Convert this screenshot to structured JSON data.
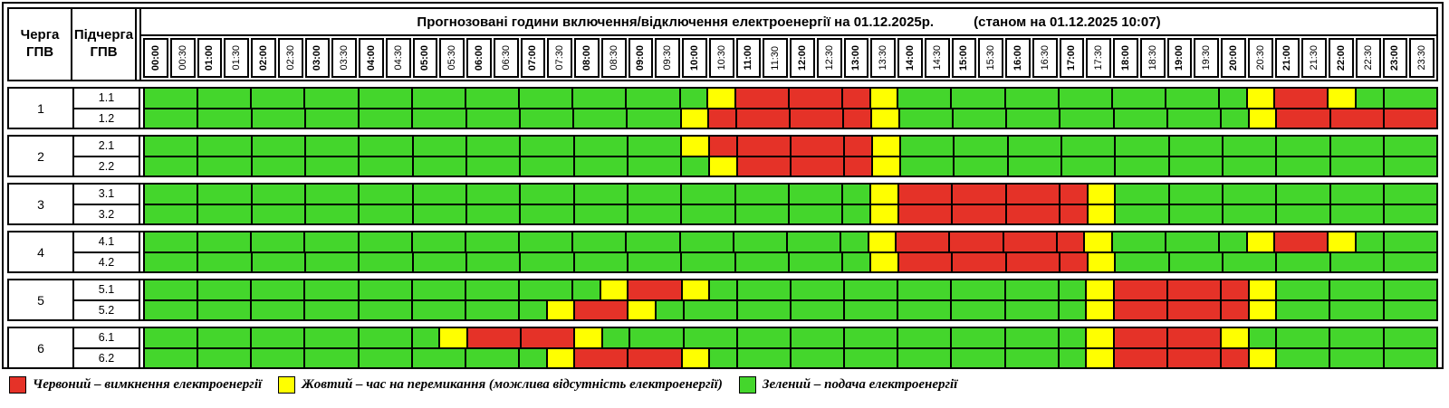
{
  "chart_data": {
    "type": "heatmap",
    "title": "Прогнозовані години включення/відключення електроенергії на 01.12.2025р.",
    "note": "(станом на 01.12.2025 10:07)",
    "col_queue_header": "Черга ГПВ",
    "col_subqueue_header": "Підчерга ГПВ",
    "x_labels": [
      "00:00",
      "00:30",
      "01:00",
      "01:30",
      "02:00",
      "02:30",
      "03:00",
      "03:30",
      "04:00",
      "04:30",
      "05:00",
      "05:30",
      "06:00",
      "06:30",
      "07:00",
      "07:30",
      "08:00",
      "08:30",
      "09:00",
      "09:30",
      "10:00",
      "10:30",
      "11:00",
      "11:30",
      "12:00",
      "12:30",
      "13:00",
      "13:30",
      "14:00",
      "14:30",
      "15:00",
      "15:30",
      "16:00",
      "16:30",
      "17:00",
      "17:30",
      "18:00",
      "18:30",
      "19:00",
      "19:30",
      "20:00",
      "20:30",
      "21:00",
      "21:30",
      "22:00",
      "22:30",
      "23:00",
      "23:30"
    ],
    "states": {
      "G": {
        "color": "#44d62c",
        "meaning": "подача електроенергії"
      },
      "Y": {
        "color": "#ffff00",
        "meaning": "час на перемикання (можлива відсутність електроенергії)"
      },
      "R": {
        "color": "#e53228",
        "meaning": "вимкнення електроенергії"
      }
    },
    "row_groups": [
      {
        "number": "1",
        "rows": [
          {
            "label": "1.1",
            "runs": [
              [
                21,
                "G"
              ],
              [
                1,
                "Y"
              ],
              [
                5,
                "R"
              ],
              [
                1,
                "Y"
              ],
              [
                13,
                "G"
              ],
              [
                1,
                "Y"
              ],
              [
                2,
                "R"
              ],
              [
                1,
                "Y"
              ],
              [
                3,
                "G"
              ]
            ]
          },
          {
            "label": "1.2",
            "runs": [
              [
                20,
                "G"
              ],
              [
                1,
                "Y"
              ],
              [
                6,
                "R"
              ],
              [
                1,
                "Y"
              ],
              [
                13,
                "G"
              ],
              [
                1,
                "Y"
              ],
              [
                6,
                "R"
              ]
            ]
          }
        ]
      },
      {
        "number": "2",
        "rows": [
          {
            "label": "2.1",
            "runs": [
              [
                20,
                "G"
              ],
              [
                1,
                "Y"
              ],
              [
                6,
                "R"
              ],
              [
                1,
                "Y"
              ],
              [
                20,
                "G"
              ]
            ]
          },
          {
            "label": "2.2",
            "runs": [
              [
                21,
                "G"
              ],
              [
                1,
                "Y"
              ],
              [
                5,
                "R"
              ],
              [
                1,
                "Y"
              ],
              [
                20,
                "G"
              ]
            ]
          }
        ]
      },
      {
        "number": "3",
        "rows": [
          {
            "label": "3.1",
            "runs": [
              [
                27,
                "G"
              ],
              [
                1,
                "Y"
              ],
              [
                7,
                "R"
              ],
              [
                1,
                "Y"
              ],
              [
                12,
                "G"
              ]
            ]
          },
          {
            "label": "3.2",
            "runs": [
              [
                27,
                "G"
              ],
              [
                1,
                "Y"
              ],
              [
                7,
                "R"
              ],
              [
                1,
                "Y"
              ],
              [
                12,
                "G"
              ]
            ]
          }
        ]
      },
      {
        "number": "4",
        "rows": [
          {
            "label": "4.1",
            "runs": [
              [
                27,
                "G"
              ],
              [
                1,
                "Y"
              ],
              [
                7,
                "R"
              ],
              [
                1,
                "Y"
              ],
              [
                5,
                "G"
              ],
              [
                1,
                "Y"
              ],
              [
                2,
                "R"
              ],
              [
                1,
                "Y"
              ],
              [
                3,
                "G"
              ]
            ]
          },
          {
            "label": "4.2",
            "runs": [
              [
                27,
                "G"
              ],
              [
                1,
                "Y"
              ],
              [
                7,
                "R"
              ],
              [
                1,
                "Y"
              ],
              [
                12,
                "G"
              ]
            ]
          }
        ]
      },
      {
        "number": "5",
        "rows": [
          {
            "label": "5.1",
            "runs": [
              [
                17,
                "G"
              ],
              [
                1,
                "Y"
              ],
              [
                2,
                "R"
              ],
              [
                1,
                "Y"
              ],
              [
                14,
                "G"
              ],
              [
                1,
                "Y"
              ],
              [
                5,
                "R"
              ],
              [
                1,
                "Y"
              ],
              [
                6,
                "G"
              ]
            ]
          },
          {
            "label": "5.2",
            "runs": [
              [
                15,
                "G"
              ],
              [
                1,
                "Y"
              ],
              [
                2,
                "R"
              ],
              [
                1,
                "Y"
              ],
              [
                16,
                "G"
              ],
              [
                1,
                "Y"
              ],
              [
                5,
                "R"
              ],
              [
                1,
                "Y"
              ],
              [
                6,
                "G"
              ]
            ]
          }
        ]
      },
      {
        "number": "6",
        "rows": [
          {
            "label": "6.1",
            "runs": [
              [
                11,
                "G"
              ],
              [
                1,
                "Y"
              ],
              [
                4,
                "R"
              ],
              [
                1,
                "Y"
              ],
              [
                18,
                "G"
              ],
              [
                1,
                "Y"
              ],
              [
                4,
                "R"
              ],
              [
                1,
                "Y"
              ],
              [
                7,
                "G"
              ]
            ]
          },
          {
            "label": "6.2",
            "runs": [
              [
                15,
                "G"
              ],
              [
                1,
                "Y"
              ],
              [
                4,
                "R"
              ],
              [
                1,
                "Y"
              ],
              [
                14,
                "G"
              ],
              [
                1,
                "Y"
              ],
              [
                5,
                "R"
              ],
              [
                1,
                "Y"
              ],
              [
                6,
                "G"
              ]
            ]
          }
        ]
      }
    ],
    "legend": [
      {
        "state": "R",
        "label": "Червоний – вимкнення електроенергії"
      },
      {
        "state": "Y",
        "label": "Жовтий – час на перемикання (можлива відсутність електроенергії)"
      },
      {
        "state": "G",
        "label": "Зелений – подача електроенергії"
      }
    ]
  }
}
